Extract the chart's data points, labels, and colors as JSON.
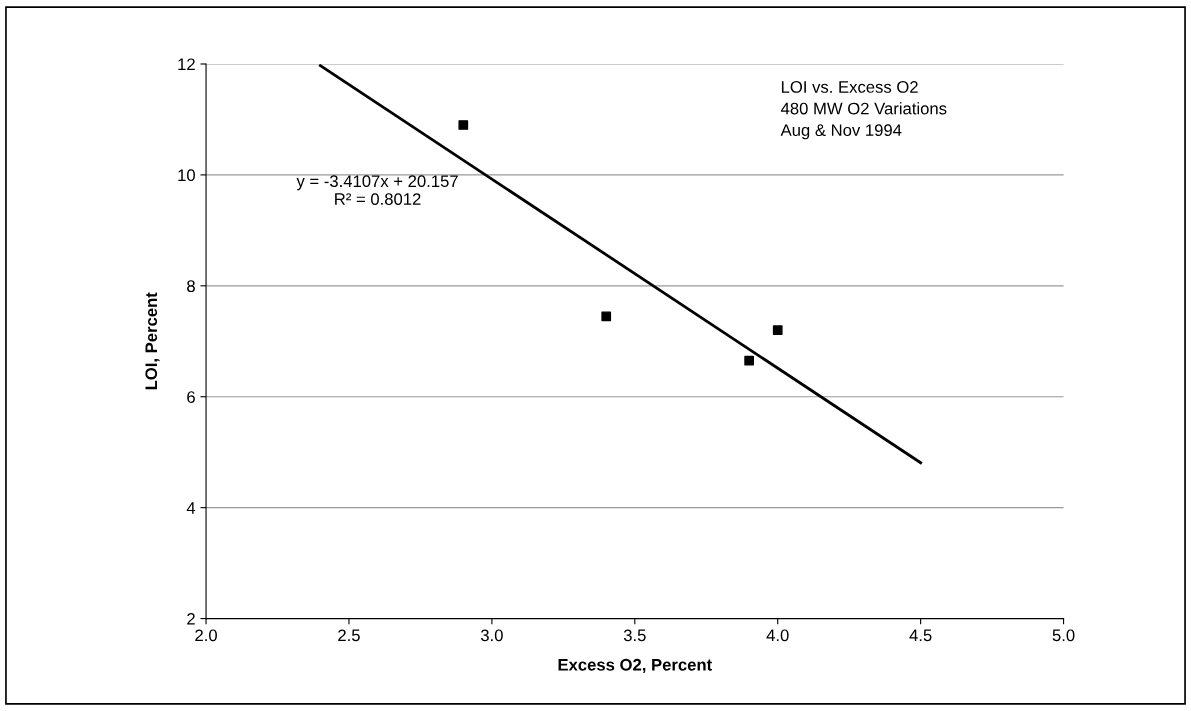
{
  "chart_data": {
    "type": "scatter",
    "xlabel": "Excess O2, Percent",
    "ylabel": "LOI, Percent",
    "xlim": [
      2.0,
      5.0
    ],
    "xticks": [
      {
        "value": 2.0,
        "label": "2.0"
      },
      {
        "value": 2.5,
        "label": "2.5"
      },
      {
        "value": 3.0,
        "label": "3.0"
      },
      {
        "value": 3.5,
        "label": "3.5"
      },
      {
        "value": 4.0,
        "label": "4.0"
      },
      {
        "value": 4.5,
        "label": "4.5"
      },
      {
        "value": 5.0,
        "label": "5.0"
      }
    ],
    "ylim": [
      2,
      12
    ],
    "yticks": [
      2,
      4,
      6,
      8,
      10,
      12
    ],
    "grid": "y",
    "legend": false,
    "series": [
      {
        "color": "#000000",
        "marker": "square",
        "x": [
          2.9,
          3.4,
          3.9,
          4.0
        ],
        "values": [
          10.9,
          7.45,
          6.65,
          7.2
        ]
      },
      {
        "type": "line",
        "color": "#000000",
        "marker": "none",
        "line_style": "solid",
        "x": [
          2.4,
          4.5
        ],
        "values": [
          11.97,
          4.81
        ]
      }
    ],
    "annotations": [
      "LOI vs. Excess O2\n480 MW O2 Variations\nAug & Nov 1994",
      "y = -3.4107x + 20.157\nR² = 0.8012"
    ]
  }
}
